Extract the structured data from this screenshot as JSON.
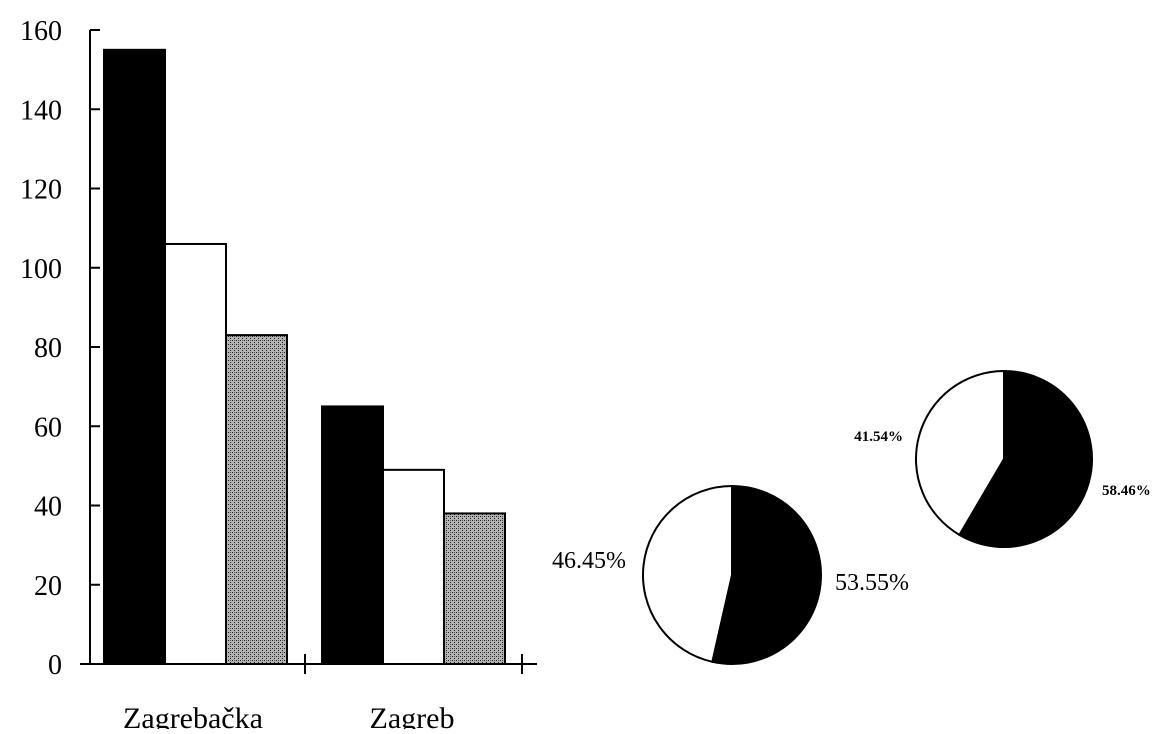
{
  "chart_data": [
    {
      "type": "bar",
      "categories": [
        "Zagrebačka",
        "Zagreb"
      ],
      "series": [
        {
          "values": [
            155,
            65
          ],
          "color": "#000000",
          "fill": "solid"
        },
        {
          "values": [
            106,
            49
          ],
          "color": "#ffffff",
          "fill": "solid"
        },
        {
          "values": [
            83,
            38
          ],
          "color": "#9a9a9a",
          "fill": "stipple"
        }
      ],
      "ylim": [
        0,
        160
      ],
      "yticks": [
        "0",
        "20",
        "40",
        "60",
        "80",
        "100",
        "120",
        "140",
        "160"
      ],
      "grid": false,
      "legend": "none"
    },
    {
      "type": "pie",
      "slices": [
        {
          "label": "53.55%",
          "value": 53.55,
          "color": "#000000"
        },
        {
          "label": "46.45%",
          "value": 46.45,
          "color": "#ffffff"
        }
      ]
    },
    {
      "type": "pie",
      "slices": [
        {
          "label": "58.46%",
          "value": 58.46,
          "color": "#000000"
        },
        {
          "label": "41.54%",
          "value": 41.54,
          "color": "#ffffff"
        }
      ]
    }
  ]
}
